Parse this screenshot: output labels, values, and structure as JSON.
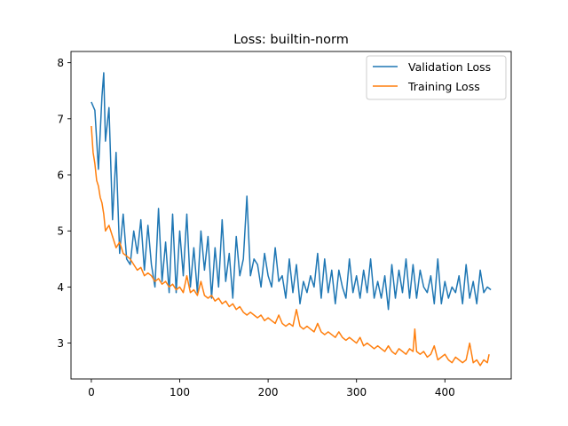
{
  "chart_data": {
    "type": "line",
    "title": "Loss: builtin-norm",
    "xlabel": "",
    "ylabel": "",
    "xlim": [
      -23,
      475
    ],
    "ylim": [
      2.36,
      8.2
    ],
    "xticks": [
      0,
      100,
      200,
      300,
      400
    ],
    "yticks": [
      3,
      4,
      5,
      6,
      7,
      8
    ],
    "grid": false,
    "legend_position": "top-right",
    "series": [
      {
        "name": "Validation Loss",
        "color": "#1f77b4",
        "x": [
          0,
          4,
          8,
          12,
          14,
          16,
          20,
          24,
          28,
          32,
          36,
          40,
          44,
          48,
          52,
          56,
          60,
          64,
          68,
          72,
          76,
          80,
          84,
          88,
          92,
          96,
          100,
          104,
          108,
          112,
          116,
          120,
          124,
          128,
          132,
          136,
          140,
          144,
          148,
          152,
          156,
          160,
          164,
          168,
          172,
          176,
          180,
          184,
          188,
          192,
          196,
          200,
          204,
          208,
          212,
          216,
          220,
          224,
          228,
          232,
          236,
          240,
          244,
          248,
          252,
          256,
          260,
          264,
          268,
          272,
          276,
          280,
          284,
          288,
          292,
          296,
          300,
          304,
          308,
          312,
          316,
          320,
          324,
          328,
          332,
          336,
          340,
          344,
          348,
          352,
          356,
          360,
          364,
          368,
          372,
          376,
          380,
          384,
          388,
          392,
          396,
          400,
          404,
          408,
          412,
          416,
          420,
          424,
          428,
          432,
          436,
          440,
          444,
          448,
          452
        ],
        "y": [
          7.3,
          7.15,
          6.1,
          7.4,
          7.82,
          6.6,
          7.2,
          5.2,
          6.4,
          4.6,
          5.3,
          4.5,
          4.4,
          5.0,
          4.6,
          5.2,
          4.3,
          5.1,
          4.4,
          4.0,
          5.4,
          4.1,
          4.8,
          3.9,
          5.3,
          3.9,
          5.0,
          4.2,
          5.3,
          4.0,
          4.7,
          3.9,
          5.0,
          4.3,
          4.9,
          3.8,
          4.7,
          4.0,
          5.2,
          4.1,
          4.6,
          3.8,
          4.9,
          4.2,
          4.5,
          5.62,
          4.2,
          4.5,
          4.4,
          4.0,
          4.6,
          4.2,
          4.0,
          4.7,
          4.1,
          4.2,
          3.8,
          4.5,
          3.9,
          4.4,
          3.7,
          4.1,
          3.9,
          4.2,
          4.0,
          4.6,
          3.8,
          4.5,
          3.9,
          4.3,
          3.7,
          4.3,
          4.0,
          3.8,
          4.5,
          3.9,
          4.2,
          3.8,
          4.3,
          3.9,
          4.5,
          3.8,
          4.1,
          3.8,
          4.2,
          3.6,
          4.4,
          3.8,
          4.3,
          3.9,
          4.5,
          3.8,
          4.4,
          3.8,
          4.3,
          4.0,
          3.9,
          4.2,
          3.7,
          4.5,
          3.7,
          4.1,
          3.8,
          4.0,
          3.9,
          4.2,
          3.7,
          4.4,
          3.8,
          4.1,
          3.7,
          4.3,
          3.9,
          4.0,
          3.95
        ]
      },
      {
        "name": "Training Loss",
        "color": "#ff7f0e",
        "x": [
          0,
          2,
          4,
          6,
          8,
          10,
          12,
          14,
          16,
          20,
          24,
          28,
          32,
          36,
          40,
          44,
          48,
          52,
          56,
          60,
          64,
          68,
          72,
          76,
          80,
          84,
          88,
          92,
          96,
          100,
          104,
          108,
          112,
          116,
          120,
          124,
          128,
          132,
          136,
          140,
          144,
          148,
          152,
          156,
          160,
          164,
          168,
          172,
          176,
          180,
          184,
          188,
          192,
          196,
          200,
          204,
          208,
          212,
          216,
          220,
          224,
          228,
          232,
          236,
          240,
          244,
          248,
          252,
          256,
          260,
          264,
          268,
          272,
          276,
          280,
          284,
          288,
          292,
          296,
          300,
          304,
          308,
          312,
          316,
          320,
          324,
          328,
          332,
          336,
          340,
          344,
          348,
          352,
          356,
          360,
          364,
          366,
          368,
          372,
          376,
          380,
          384,
          388,
          392,
          396,
          400,
          404,
          408,
          412,
          416,
          420,
          424,
          428,
          432,
          436,
          440,
          444,
          448,
          450
        ],
        "y": [
          6.87,
          6.4,
          6.2,
          5.9,
          5.8,
          5.6,
          5.5,
          5.3,
          5.0,
          5.1,
          4.9,
          4.7,
          4.8,
          4.6,
          4.55,
          4.5,
          4.4,
          4.3,
          4.35,
          4.2,
          4.25,
          4.2,
          4.1,
          4.15,
          4.05,
          4.1,
          4.0,
          4.05,
          3.95,
          4.0,
          3.9,
          4.2,
          3.9,
          3.95,
          3.85,
          4.1,
          3.85,
          3.8,
          3.85,
          3.75,
          3.8,
          3.7,
          3.75,
          3.65,
          3.7,
          3.6,
          3.65,
          3.55,
          3.5,
          3.55,
          3.5,
          3.45,
          3.5,
          3.4,
          3.45,
          3.4,
          3.35,
          3.5,
          3.35,
          3.3,
          3.35,
          3.3,
          3.6,
          3.3,
          3.25,
          3.3,
          3.25,
          3.2,
          3.35,
          3.2,
          3.15,
          3.2,
          3.15,
          3.1,
          3.2,
          3.1,
          3.05,
          3.1,
          3.05,
          3.0,
          3.1,
          2.95,
          3.0,
          2.95,
          2.9,
          2.95,
          2.9,
          2.85,
          2.95,
          2.85,
          2.8,
          2.9,
          2.85,
          2.8,
          2.9,
          2.85,
          3.25,
          2.85,
          2.8,
          2.85,
          2.75,
          2.8,
          2.95,
          2.7,
          2.75,
          2.8,
          2.7,
          2.65,
          2.75,
          2.7,
          2.65,
          2.7,
          3.0,
          2.65,
          2.7,
          2.6,
          2.7,
          2.65,
          2.8
        ]
      }
    ]
  }
}
